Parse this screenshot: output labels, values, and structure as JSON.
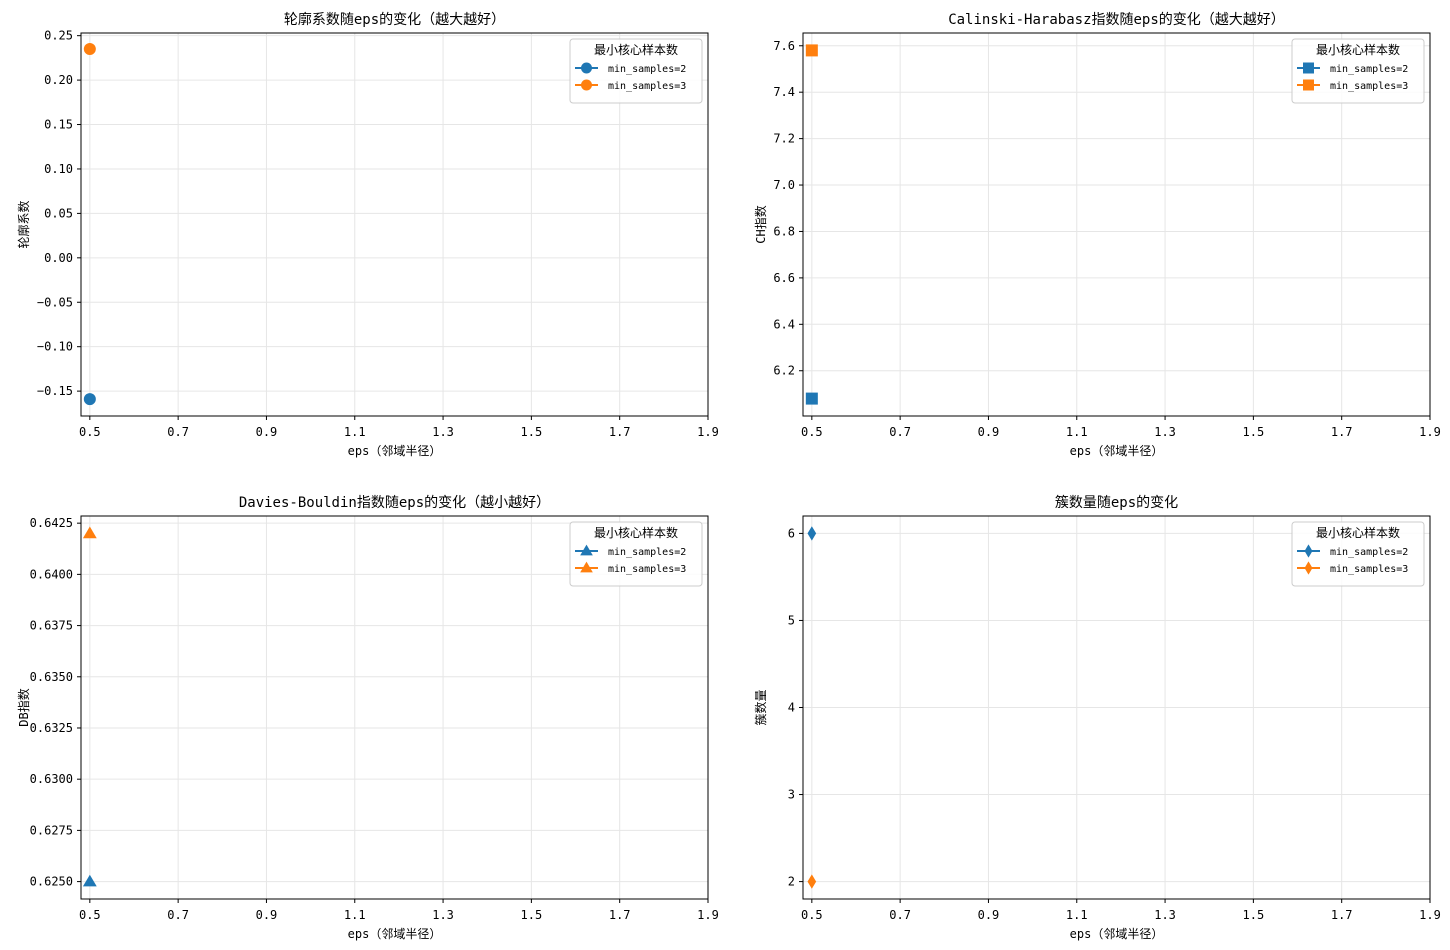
{
  "chart_data": [
    {
      "type": "scatter",
      "title": "轮廓系数随eps的变化（越大越好）",
      "xlabel": "eps（邻域半径）",
      "ylabel": "轮廓系数",
      "xlim": [
        0.48,
        1.9
      ],
      "ylim": [
        -0.178,
        0.253
      ],
      "xticks": [
        0.5,
        0.7,
        0.9,
        1.1,
        1.3,
        1.5,
        1.7,
        1.9
      ],
      "xtick_labels": [
        "0.5",
        "0.7",
        "0.9",
        "1.1",
        "1.3",
        "1.5",
        "1.7",
        "1.9"
      ],
      "yticks": [
        -0.15,
        -0.1,
        -0.05,
        0.0,
        0.05,
        0.1,
        0.15,
        0.2,
        0.25
      ],
      "ytick_labels": [
        "−0.15",
        "−0.10",
        "−0.05",
        "0.00",
        "0.05",
        "0.10",
        "0.15",
        "0.20",
        "0.25"
      ],
      "marker": "circle",
      "grid": true,
      "legend": {
        "title": "最小核心样本数",
        "position": "top-right"
      },
      "series": [
        {
          "name": "min_samples=2",
          "color": "#1f77b4",
          "x": [
            0.5
          ],
          "y": [
            -0.159
          ]
        },
        {
          "name": "min_samples=3",
          "color": "#ff7f0e",
          "x": [
            0.5
          ],
          "y": [
            0.235
          ]
        }
      ]
    },
    {
      "type": "scatter",
      "title": "Calinski-Harabasz指数随eps的变化（越大越好）",
      "xlabel": "eps（邻域半径）",
      "ylabel": "CH指数",
      "xlim": [
        0.48,
        1.9
      ],
      "ylim": [
        6.005,
        7.655
      ],
      "xticks": [
        0.5,
        0.7,
        0.9,
        1.1,
        1.3,
        1.5,
        1.7,
        1.9
      ],
      "xtick_labels": [
        "0.5",
        "0.7",
        "0.9",
        "1.1",
        "1.3",
        "1.5",
        "1.7",
        "1.9"
      ],
      "yticks": [
        6.2,
        6.4,
        6.6,
        6.8,
        7.0,
        7.2,
        7.4,
        7.6
      ],
      "ytick_labels": [
        "6.2",
        "6.4",
        "6.6",
        "6.8",
        "7.0",
        "7.2",
        "7.4",
        "7.6"
      ],
      "marker": "square",
      "grid": true,
      "legend": {
        "title": "最小核心样本数",
        "position": "top-right"
      },
      "series": [
        {
          "name": "min_samples=2",
          "color": "#1f77b4",
          "x": [
            0.5
          ],
          "y": [
            6.08
          ]
        },
        {
          "name": "min_samples=3",
          "color": "#ff7f0e",
          "x": [
            0.5
          ],
          "y": [
            7.58
          ]
        }
      ]
    },
    {
      "type": "scatter",
      "title": "Davies-Bouldin指数随eps的变化（越小越好）",
      "xlabel": "eps（邻域半径）",
      "ylabel": "DB指数",
      "xlim": [
        0.48,
        1.9
      ],
      "ylim": [
        0.62415,
        0.64285
      ],
      "xticks": [
        0.5,
        0.7,
        0.9,
        1.1,
        1.3,
        1.5,
        1.7,
        1.9
      ],
      "xtick_labels": [
        "0.5",
        "0.7",
        "0.9",
        "1.1",
        "1.3",
        "1.5",
        "1.7",
        "1.9"
      ],
      "yticks": [
        0.625,
        0.6275,
        0.63,
        0.6325,
        0.635,
        0.6375,
        0.64,
        0.6425
      ],
      "ytick_labels": [
        "0.6250",
        "0.6275",
        "0.6300",
        "0.6325",
        "0.6350",
        "0.6375",
        "0.6400",
        "0.6425"
      ],
      "marker": "triangle",
      "grid": true,
      "legend": {
        "title": "最小核心样本数",
        "position": "top-right"
      },
      "series": [
        {
          "name": "min_samples=2",
          "color": "#1f77b4",
          "x": [
            0.5
          ],
          "y": [
            0.625
          ]
        },
        {
          "name": "min_samples=3",
          "color": "#ff7f0e",
          "x": [
            0.5
          ],
          "y": [
            0.642
          ]
        }
      ]
    },
    {
      "type": "scatter",
      "title": "簇数量随eps的变化",
      "xlabel": "eps（邻域半径）",
      "ylabel": "簇数量",
      "xlim": [
        0.48,
        1.9
      ],
      "ylim": [
        1.8,
        6.2
      ],
      "xticks": [
        0.5,
        0.7,
        0.9,
        1.1,
        1.3,
        1.5,
        1.7,
        1.9
      ],
      "xtick_labels": [
        "0.5",
        "0.7",
        "0.9",
        "1.1",
        "1.3",
        "1.5",
        "1.7",
        "1.9"
      ],
      "yticks": [
        2,
        3,
        4,
        5,
        6
      ],
      "ytick_labels": [
        "2",
        "3",
        "4",
        "5",
        "6"
      ],
      "marker": "diamond",
      "grid": true,
      "legend": {
        "title": "最小核心样本数",
        "position": "top-right"
      },
      "series": [
        {
          "name": "min_samples=2",
          "color": "#1f77b4",
          "x": [
            0.5
          ],
          "y": [
            6
          ]
        },
        {
          "name": "min_samples=3",
          "color": "#ff7f0e",
          "x": [
            0.5
          ],
          "y": [
            2
          ]
        }
      ]
    }
  ]
}
